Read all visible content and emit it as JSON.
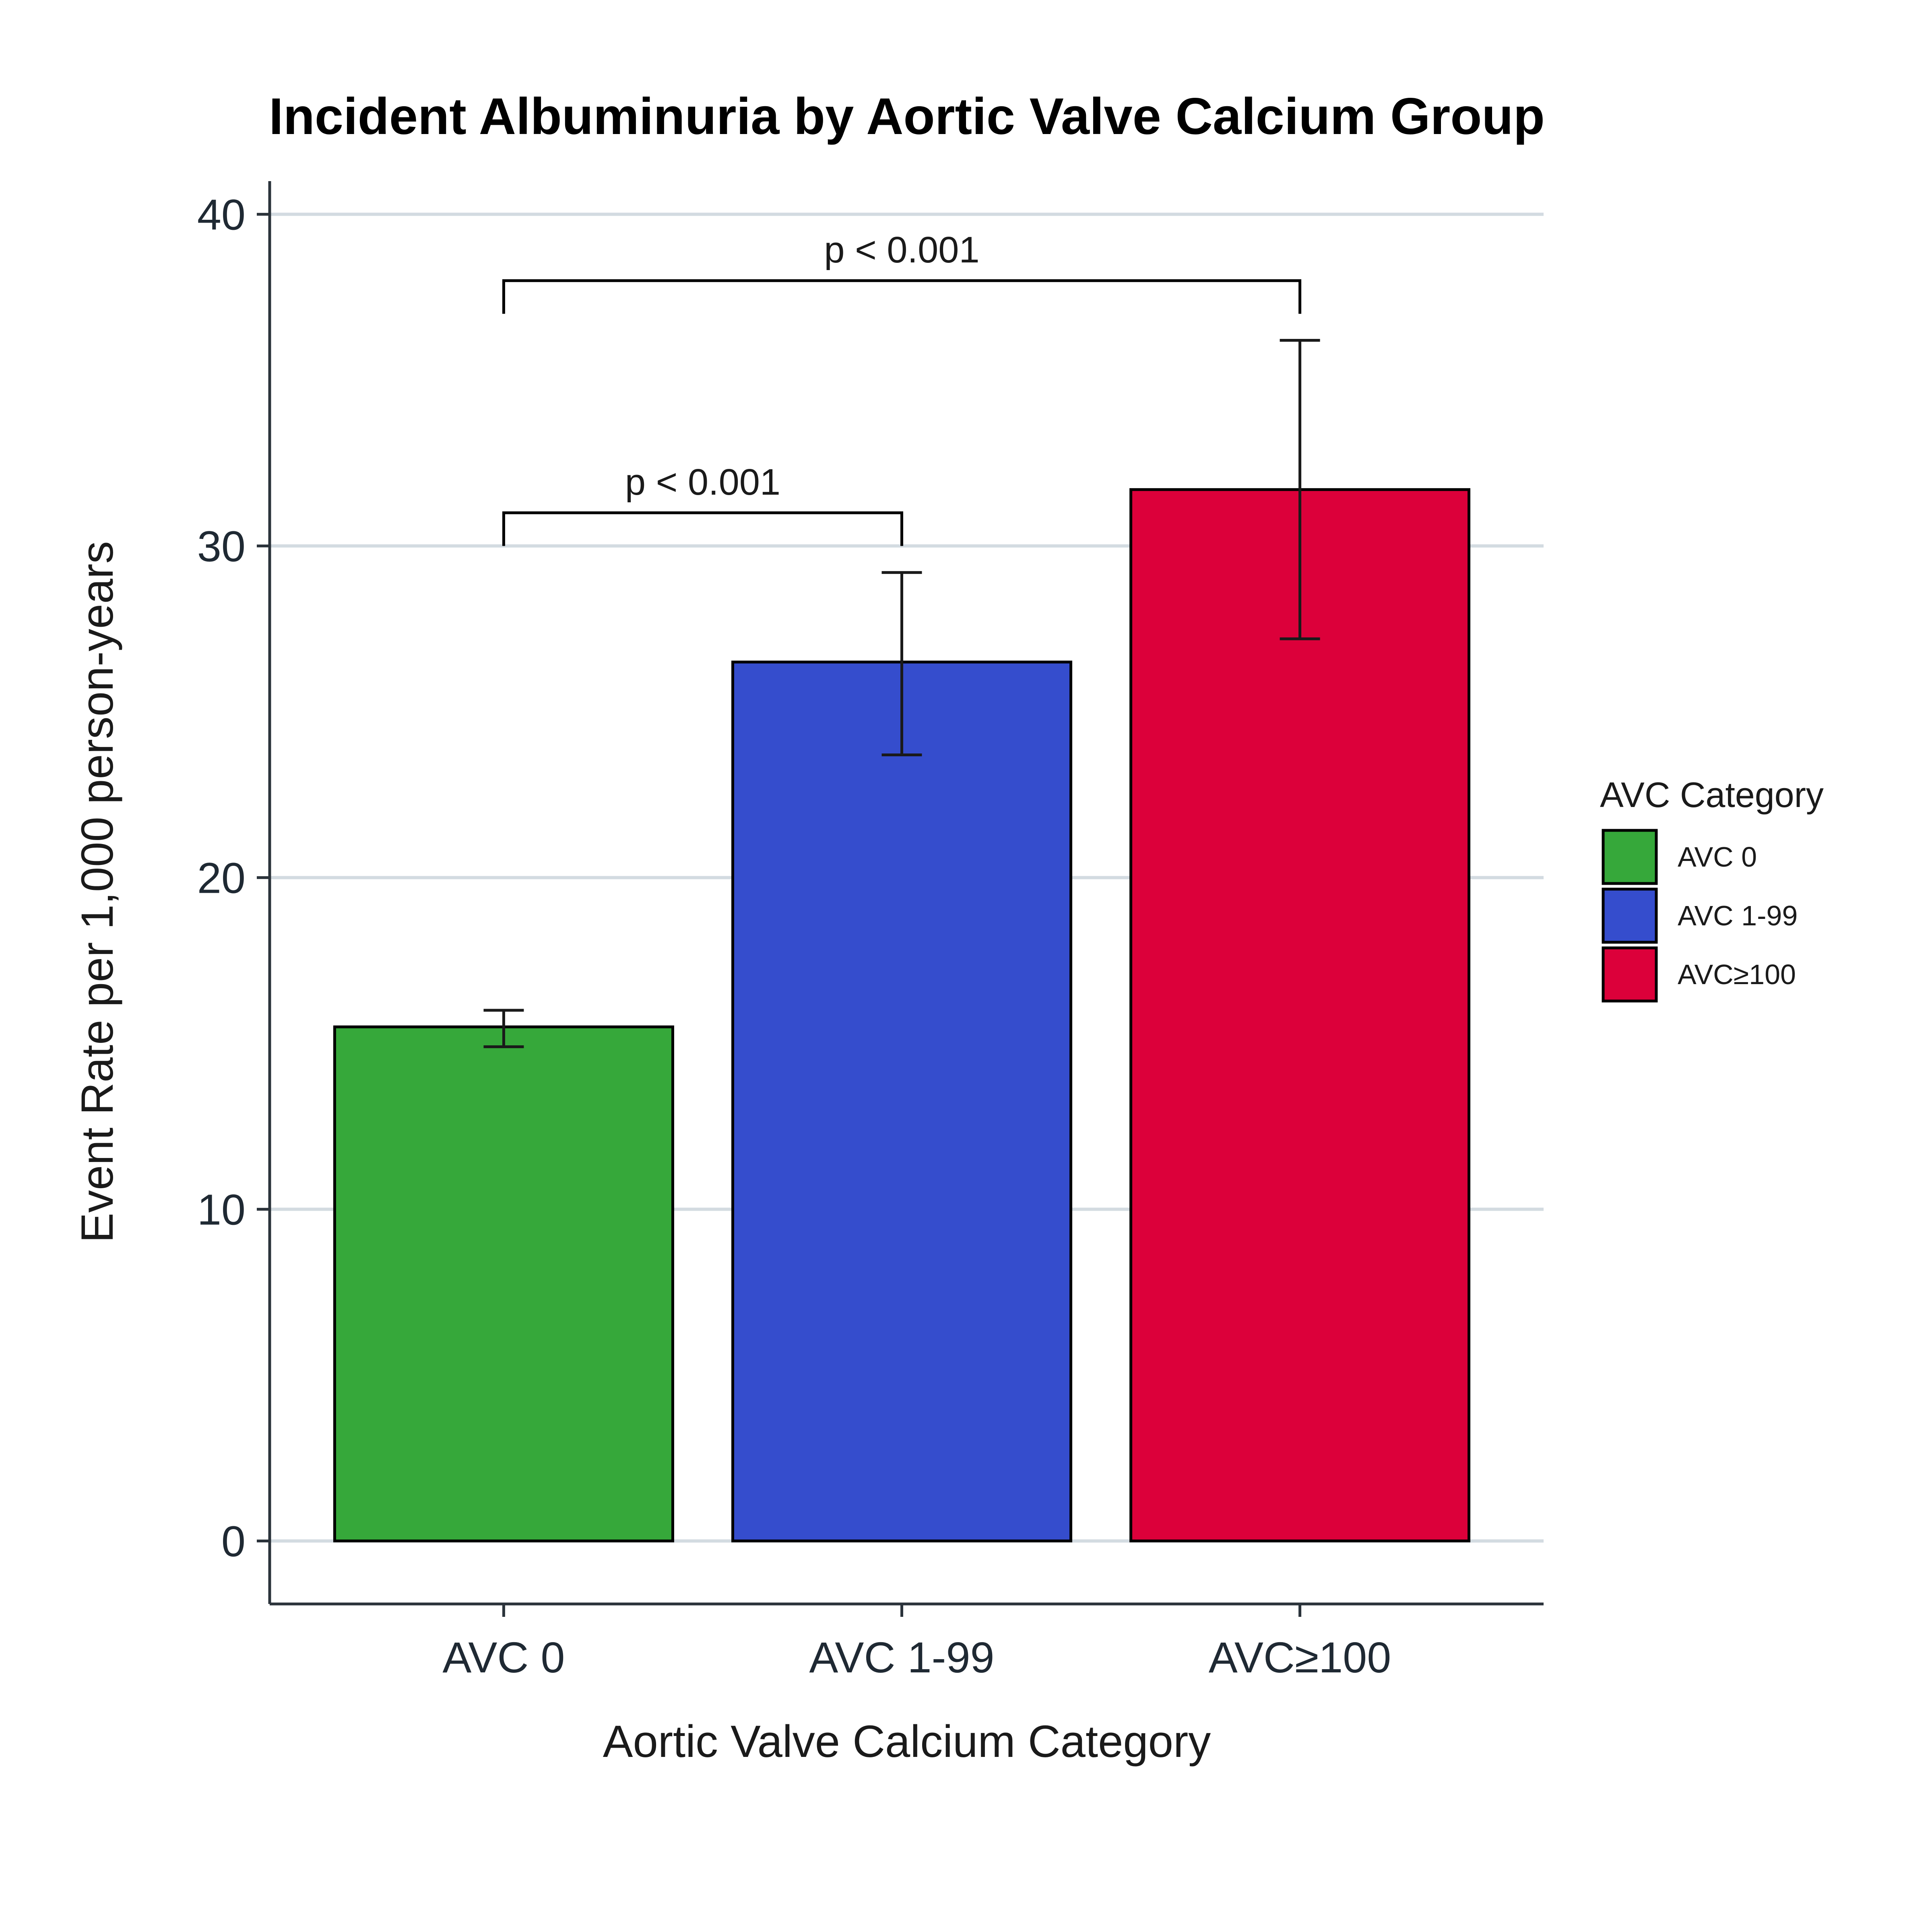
{
  "chart_data": {
    "type": "bar",
    "title": "Incident Albuminuria by Aortic Valve Calcium Group",
    "xlabel": "Aortic Valve Calcium Category",
    "ylabel": "Event Rate per 1,000 person-years",
    "categories": [
      "AVC 0",
      "AVC 1-99",
      "AVC≥100"
    ],
    "values": [
      15.5,
      26.5,
      31.7
    ],
    "error_low": [
      14.9,
      23.7,
      27.2
    ],
    "error_high": [
      16.0,
      29.2,
      36.2
    ],
    "colors": [
      "#36a83a",
      "#354dcd",
      "#dc003a"
    ],
    "ylim": [
      -1.9,
      41
    ],
    "yticks": [
      0,
      10,
      20,
      30,
      40
    ],
    "grid": "horizontal major",
    "legend": {
      "title": "AVC Category",
      "entries": [
        "AVC 0",
        "AVC 1-99",
        "AVC≥100"
      ],
      "placement": "right"
    },
    "annotations": [
      {
        "label": "p < 0.001",
        "from": "AVC 0",
        "to": "AVC 1-99",
        "y_bracket": 31,
        "y_tick_end": 30
      },
      {
        "label": "p < 0.001",
        "from": "AVC 0",
        "to": "AVC≥100",
        "y_bracket": 38,
        "y_tick_end": 37
      }
    ]
  }
}
